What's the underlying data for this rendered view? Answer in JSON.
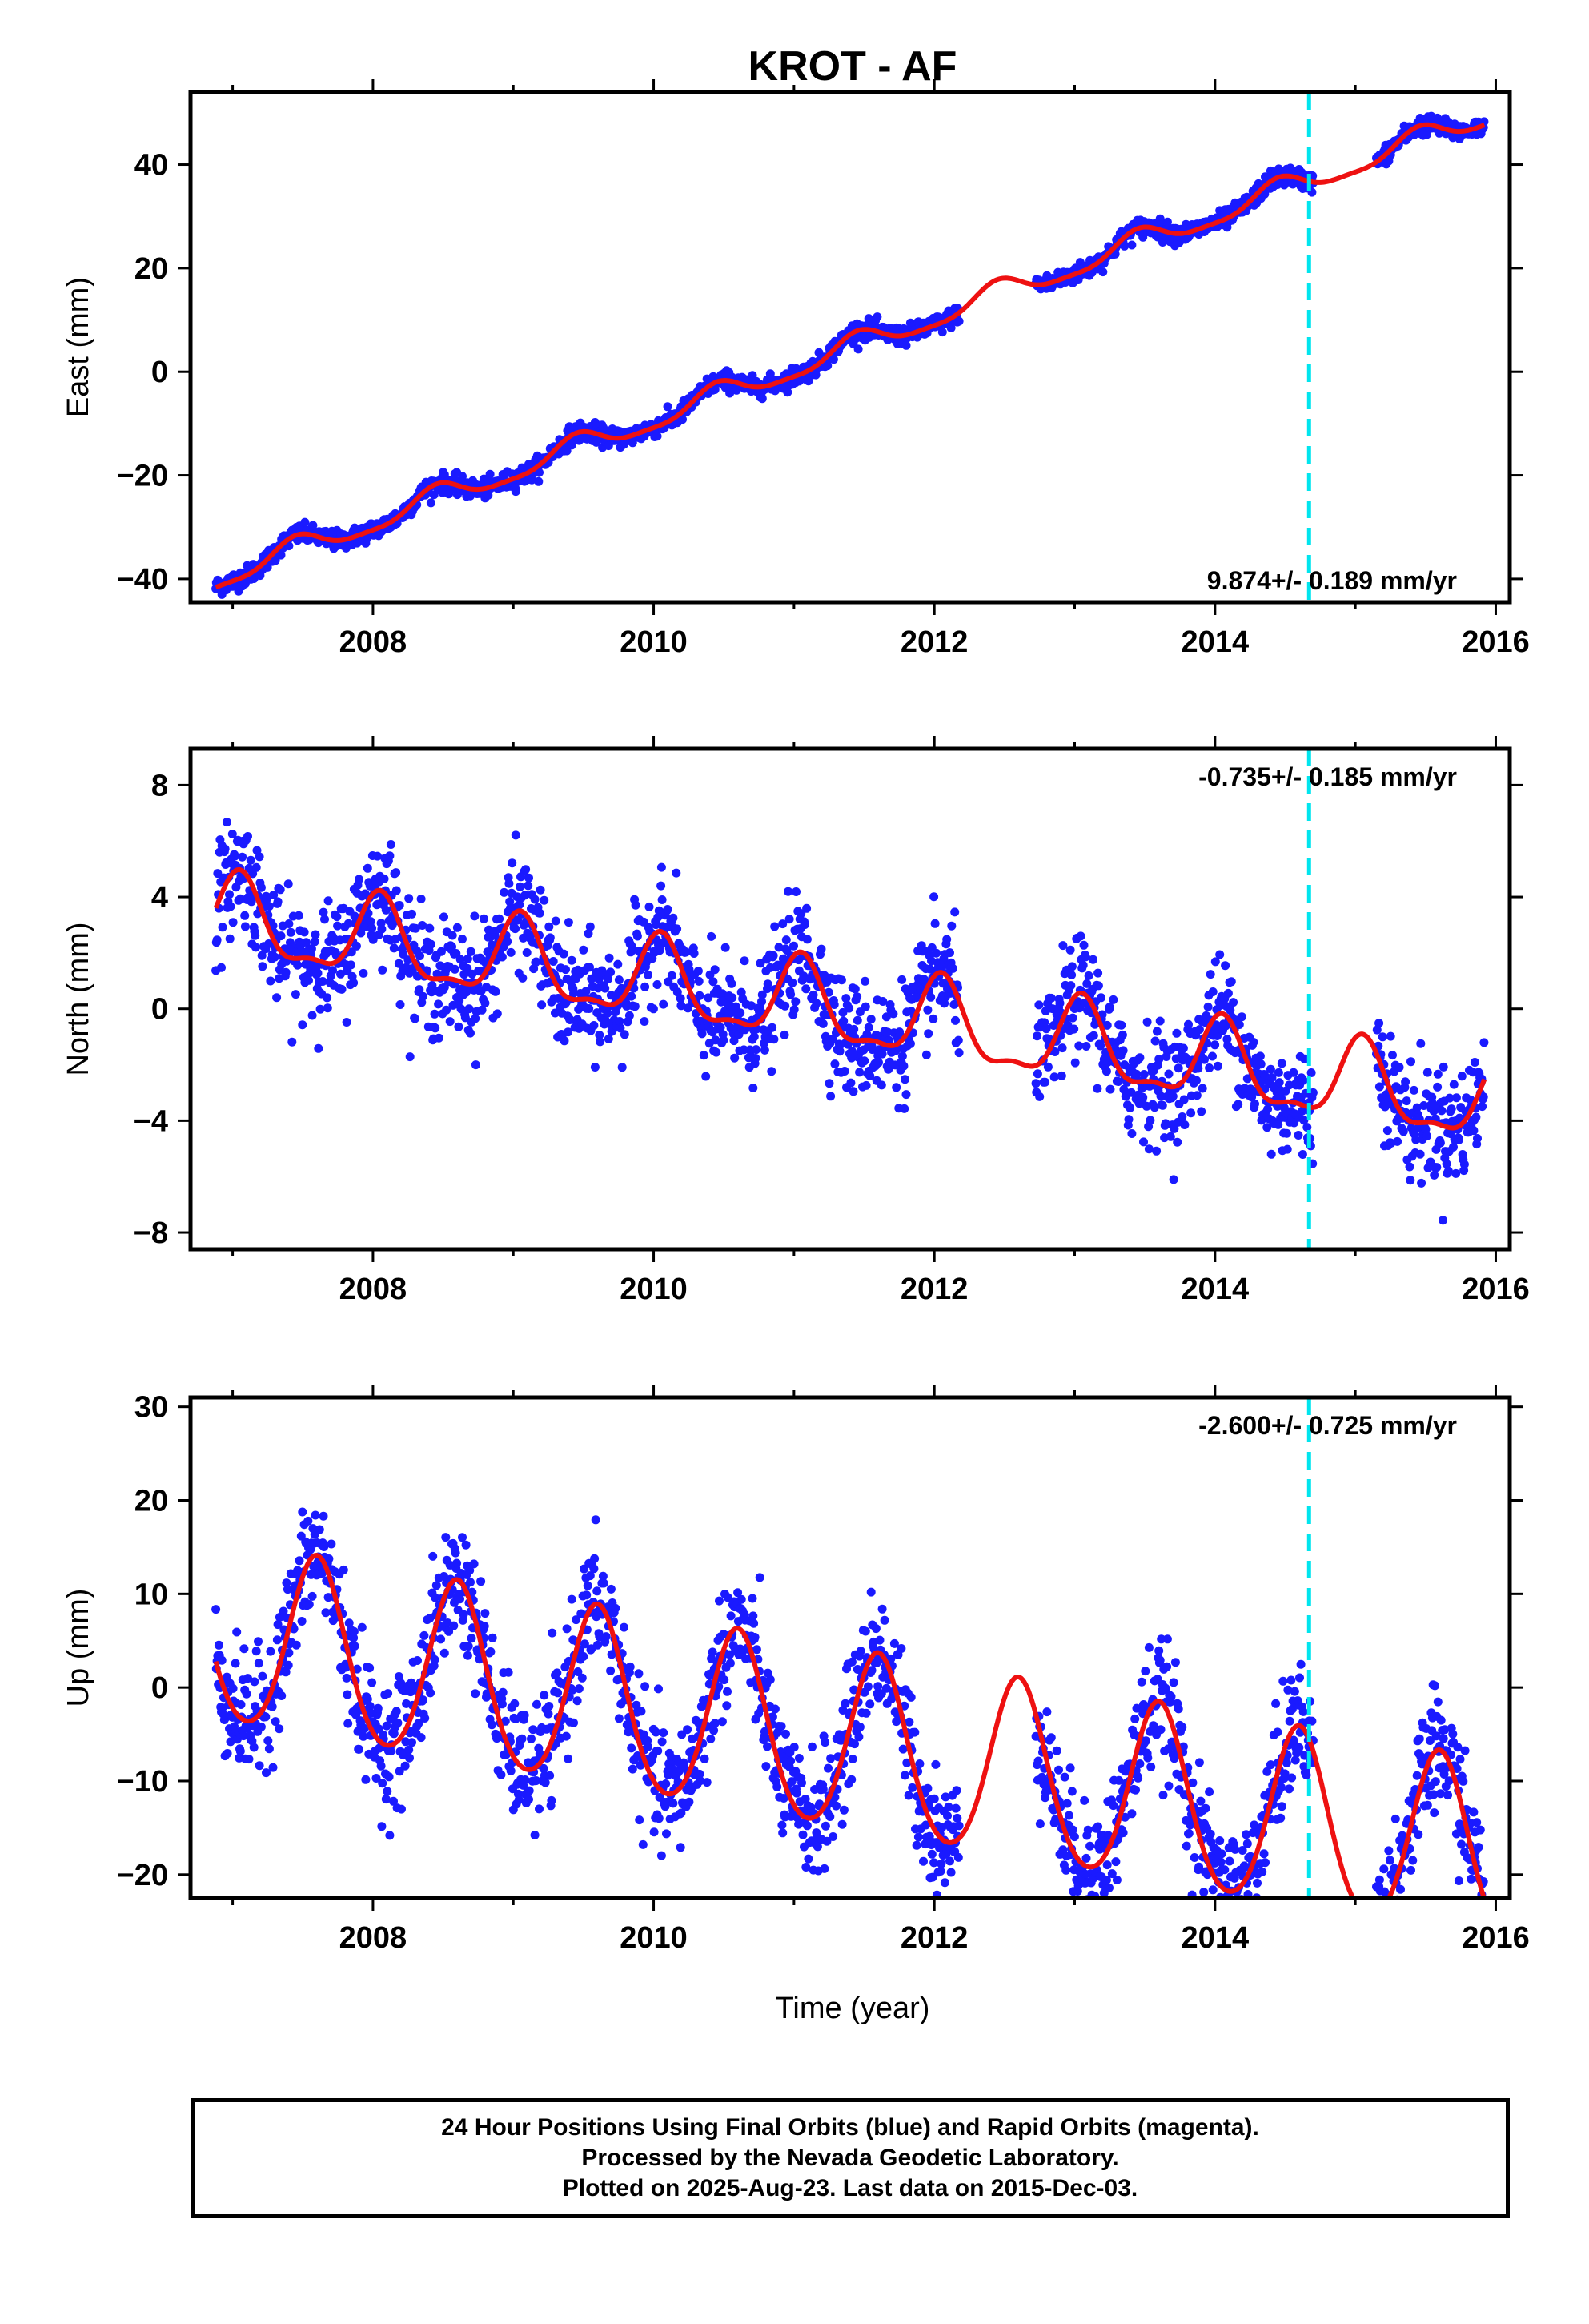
{
  "title": "KROT - AF",
  "xlabel": "Time (year)",
  "colors": {
    "points": "#1a1aff",
    "fit": "#ee1111",
    "event_line": "#00e5ee",
    "frame": "#000000"
  },
  "chart_data": [
    {
      "type": "scatter",
      "component": "East",
      "ylabel": "East (mm)",
      "xlim": [
        2006.7,
        2016.1
      ],
      "ylim": [
        -44.5,
        54
      ],
      "x_ticks": [
        2008,
        2010,
        2012,
        2014,
        2016
      ],
      "y_ticks": [
        -40,
        -20,
        0,
        20,
        40
      ],
      "y_tick_labels": [
        "−40",
        "−20",
        "0",
        "20",
        "40"
      ],
      "rate_text": "9.874+/- 0.189 mm/yr",
      "rate_position": "bottom-right",
      "event_line_x": 2014.67,
      "data_span": [
        2006.88,
        2015.92
      ],
      "gaps": [
        [
          2012.18,
          2012.72
        ],
        [
          2014.7,
          2015.15
        ]
      ],
      "trend": {
        "offset": -40,
        "rate": 9.874,
        "t0": 2006.88
      },
      "seasonal": {
        "annual_amp": 2.2,
        "annual_phase_peak": 2007.45,
        "semiannual_amp": 0.6
      },
      "scatter_sd": 0.9,
      "series": [
        {
          "name": "Final Orbits",
          "role": "points"
        },
        {
          "name": "Fit",
          "role": "line"
        }
      ]
    },
    {
      "type": "scatter",
      "component": "North",
      "ylabel": "North (mm)",
      "xlim": [
        2006.7,
        2016.1
      ],
      "ylim": [
        -8.6,
        9.3
      ],
      "x_ticks": [
        2008,
        2010,
        2012,
        2014,
        2016
      ],
      "y_ticks": [
        -8,
        -4,
        0,
        4,
        8
      ],
      "y_tick_labels": [
        "−8",
        "−4",
        "0",
        "4",
        "8"
      ],
      "rate_text": "-0.735+/- 0.185 mm/yr",
      "rate_position": "top-right",
      "event_line_x": 2014.67,
      "data_span": [
        2006.88,
        2015.92
      ],
      "gaps": [
        [
          2012.18,
          2012.72
        ],
        [
          2014.7,
          2015.15
        ]
      ],
      "trend": {
        "offset": 3.2,
        "rate": -0.735,
        "t0": 2006.88
      },
      "seasonal": {
        "annual_amp": 1.4,
        "annual_phase_peak": 2007.05,
        "semiannual_amp": 0.5
      },
      "scatter_sd": 1.0,
      "series": [
        {
          "name": "Final Orbits",
          "role": "points"
        },
        {
          "name": "Fit",
          "role": "line"
        }
      ]
    },
    {
      "type": "scatter",
      "component": "Up",
      "ylabel": "Up (mm)",
      "xlim": [
        2006.7,
        2016.1
      ],
      "ylim": [
        -22.5,
        31
      ],
      "x_ticks": [
        2008,
        2010,
        2012,
        2014,
        2016
      ],
      "y_ticks": [
        -20,
        -10,
        0,
        10,
        20,
        30
      ],
      "y_tick_labels": [
        "−20",
        "−10",
        "0",
        "10",
        "20",
        "30"
      ],
      "rate_text": "-2.600+/- 0.725 mm/yr",
      "rate_position": "top-right",
      "event_line_x": 2014.67,
      "data_span": [
        2006.88,
        2015.92
      ],
      "gaps": [
        [
          2012.18,
          2012.72
        ],
        [
          2014.7,
          2015.15
        ]
      ],
      "trend": {
        "offset": 5.5,
        "rate": -2.6,
        "t0": 2006.88
      },
      "seasonal": {
        "annual_amp": 9.5,
        "annual_phase_peak": 2007.6,
        "semiannual_amp": 1.0
      },
      "scatter_sd": 3.2,
      "series": [
        {
          "name": "Final Orbits",
          "role": "points"
        },
        {
          "name": "Fit",
          "role": "line"
        }
      ]
    }
  ],
  "footer": {
    "line1": "24 Hour Positions Using Final Orbits (blue) and Rapid Orbits (magenta).",
    "line2": "Processed by the Nevada Geodetic Laboratory.",
    "line3": "Plotted on 2025-Aug-23. Last data on 2015-Dec-03."
  }
}
